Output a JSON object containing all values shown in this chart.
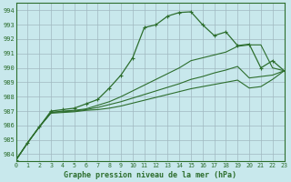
{
  "title": "Graphe pression niveau de la mer (hPa)",
  "background_color": "#c8e8ec",
  "plot_bg_color": "#c8e8ec",
  "grid_color": "#a0b8c0",
  "line_color": "#2d6e2d",
  "xlim": [
    0,
    23
  ],
  "ylim": [
    983.5,
    994.5
  ],
  "yticks": [
    984,
    985,
    986,
    987,
    988,
    989,
    990,
    991,
    992,
    993,
    994
  ],
  "xticks": [
    0,
    1,
    2,
    3,
    4,
    5,
    6,
    7,
    8,
    9,
    10,
    11,
    12,
    13,
    14,
    15,
    16,
    17,
    18,
    19,
    20,
    21,
    22,
    23
  ],
  "line1_main": [
    983.6,
    984.8,
    985.9,
    987.0,
    987.1,
    987.2,
    987.5,
    987.8,
    988.6,
    989.5,
    990.7,
    992.8,
    993.0,
    993.6,
    993.85,
    993.9,
    993.0,
    992.25,
    992.5,
    991.55,
    991.65,
    990.0,
    990.5,
    989.8
  ],
  "line2": [
    983.6,
    984.8,
    985.9,
    986.9,
    987.0,
    987.05,
    987.15,
    987.4,
    987.65,
    988.0,
    988.4,
    988.8,
    989.2,
    989.6,
    990.0,
    990.5,
    990.7,
    990.9,
    991.1,
    991.5,
    991.6,
    991.6,
    990.0,
    989.8
  ],
  "line3": [
    983.6,
    984.8,
    985.9,
    986.9,
    986.95,
    987.0,
    987.1,
    987.25,
    987.45,
    987.65,
    987.9,
    988.15,
    988.4,
    988.65,
    988.9,
    989.2,
    989.4,
    989.65,
    989.85,
    990.1,
    989.3,
    989.4,
    989.5,
    989.8
  ],
  "line4": [
    983.6,
    984.8,
    985.9,
    986.85,
    986.9,
    986.95,
    987.05,
    987.1,
    987.2,
    987.35,
    987.55,
    987.75,
    987.95,
    988.15,
    988.35,
    988.55,
    988.7,
    988.85,
    989.0,
    989.15,
    988.6,
    988.7,
    989.2,
    989.8
  ]
}
